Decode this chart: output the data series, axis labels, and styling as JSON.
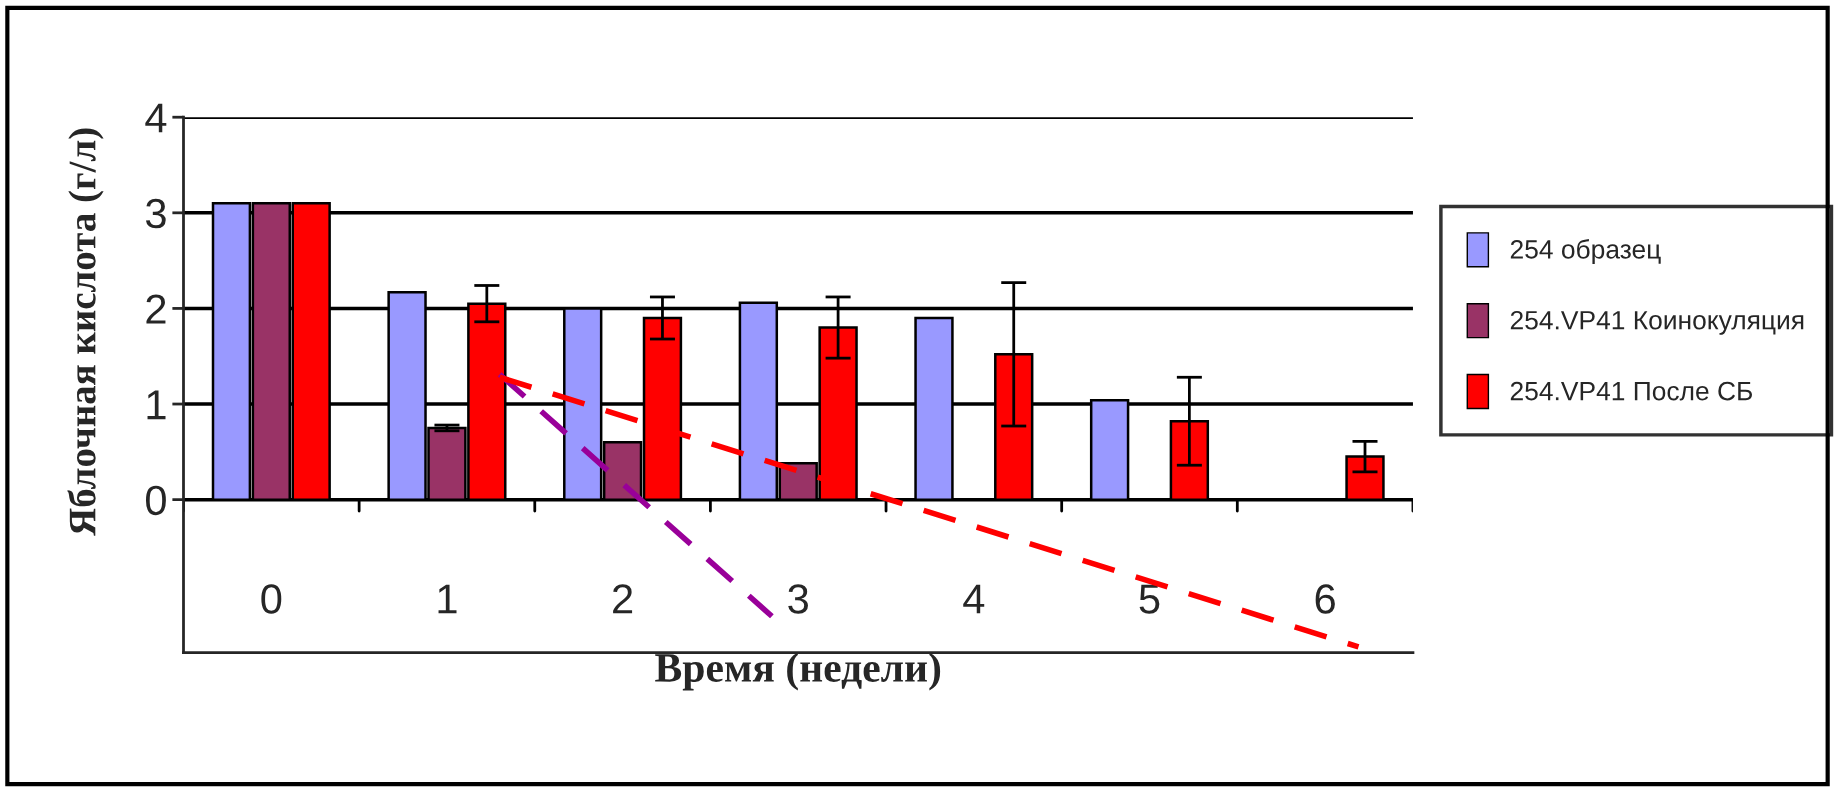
{
  "chart_data": {
    "type": "bar",
    "xlabel": "Время (недели)",
    "ylabel": "Яблочная кислота (г/л)",
    "x": [
      0,
      1,
      2,
      3,
      4,
      5,
      6
    ],
    "xlim": [
      -0.5,
      6.5
    ],
    "xticks": [
      0,
      1,
      2,
      3,
      4,
      5,
      6
    ],
    "ylim": [
      -1.6,
      4
    ],
    "yticks": [
      0,
      1,
      2,
      3,
      4
    ],
    "grid": "y",
    "legend": "right",
    "series": [
      {
        "name": "254 образец",
        "color": "#9999ff",
        "values": [
          3.1,
          2.17,
          2.0,
          2.06,
          1.9,
          1.04,
          null
        ]
      },
      {
        "name": "254.VP41 Коинокуляция",
        "color": "#993366",
        "values": [
          3.1,
          0.75,
          0.6,
          0.38,
          null,
          null,
          null
        ],
        "errors": [
          null,
          0.03,
          null,
          null,
          null,
          null,
          null
        ]
      },
      {
        "name": "254.VP41 После СБ",
        "color": "#ff0000",
        "values": [
          3.1,
          2.05,
          1.9,
          1.8,
          1.52,
          0.82,
          0.45
        ],
        "errors": [
          null,
          0.19,
          0.22,
          0.32,
          0.75,
          0.46,
          0.16
        ]
      },
      {
        "type": "line",
        "color": "#990099",
        "line_style": "dashed",
        "x": [
          1.3,
          2.85
        ],
        "values": [
          1.31,
          -1.22
        ]
      },
      {
        "type": "line",
        "color": "#ff0000",
        "line_style": "dashed",
        "x": [
          1.3,
          6.19
        ],
        "values": [
          1.28,
          -1.54
        ]
      }
    ]
  }
}
